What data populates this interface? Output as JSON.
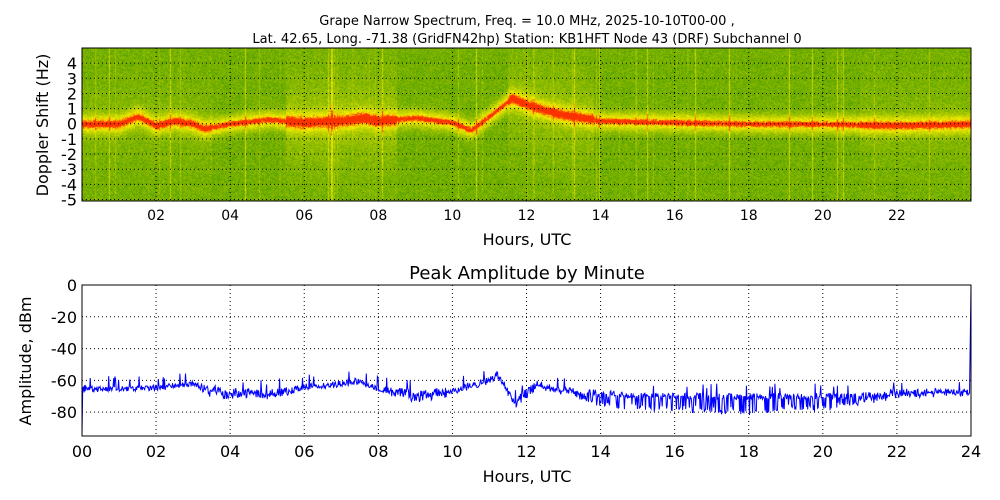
{
  "chart_data": [
    {
      "type": "heatmap",
      "title_line1": "Grape Narrow Spectrum, Freq. = 10.0 MHz, 2025-10-10T00-00 ,",
      "title_line2": "Lat.  42.65, Long. -71.38 (GridFN42hp) Station: KB1HFT Node 43 (DRF) Subchannel 0",
      "xlabel": "Hours, UTC",
      "ylabel": "Doppler Shift (Hz)",
      "xlim": [
        0,
        24
      ],
      "ylim": [
        -5.1,
        5
      ],
      "xticks": [
        2,
        4,
        6,
        8,
        10,
        12,
        14,
        16,
        18,
        20,
        22
      ],
      "xtick_labels": [
        "02",
        "04",
        "06",
        "08",
        "10",
        "12",
        "14",
        "16",
        "18",
        "20",
        "22"
      ],
      "yticks": [
        4,
        3,
        2,
        1,
        0,
        -1,
        -2,
        -3,
        -4,
        -5
      ],
      "ytick_labels": [
        "4",
        "3",
        "2",
        "1",
        "0",
        "-1",
        "-2",
        "-3",
        "-4",
        "-5"
      ],
      "grid": true,
      "colors": {
        "low": "#3f9a00",
        "mid": "#e8f000",
        "high": "#ff2a00"
      },
      "doppler_trace": {
        "hours": [
          0,
          1,
          1.5,
          2,
          2.5,
          3,
          3.3,
          4,
          5,
          6,
          7,
          7.6,
          8,
          9,
          10,
          10.5,
          11,
          11.6,
          12,
          12.5,
          13,
          13.8,
          14,
          16,
          18,
          20,
          22,
          24
        ],
        "hz": [
          0,
          0,
          0.5,
          -0.1,
          0.2,
          0,
          -0.3,
          0,
          0.3,
          0.1,
          0.2,
          0.4,
          0.2,
          0.4,
          0.1,
          -0.4,
          0.5,
          1.7,
          1.3,
          0.9,
          0.6,
          0.3,
          0.2,
          0.1,
          0,
          0,
          -0.1,
          0
        ]
      }
    },
    {
      "type": "line",
      "title": "Peak Amplitude by Minute",
      "xlabel": "Hours, UTC",
      "ylabel": "Amplitude, dBm",
      "xlim": [
        0,
        24
      ],
      "ylim": [
        -95,
        0
      ],
      "xticks": [
        0,
        2,
        4,
        6,
        8,
        10,
        12,
        14,
        16,
        18,
        20,
        22,
        24
      ],
      "xtick_labels": [
        "00",
        "02",
        "04",
        "06",
        "08",
        "10",
        "12",
        "14",
        "16",
        "18",
        "20",
        "22",
        "24"
      ],
      "yticks": [
        0,
        -20,
        -40,
        -60,
        -80
      ],
      "ytick_labels": [
        "0",
        "-20",
        "-40",
        "-60",
        "-80"
      ],
      "grid": true,
      "color": "#0000ff",
      "series": {
        "hours": [
          0,
          1,
          2,
          3,
          3.5,
          5,
          6,
          7,
          7.5,
          8,
          9,
          10,
          11,
          11.2,
          11.7,
          12.3,
          13,
          14,
          15,
          16.5,
          18,
          20,
          21,
          22,
          23.9
        ],
        "mean": [
          -65,
          -65,
          -65,
          -62,
          -65,
          -68,
          -64,
          -62,
          -60,
          -65,
          -68,
          -66,
          -60,
          -56,
          -72,
          -62,
          -66,
          -68,
          -70,
          -70,
          -70,
          -70,
          -70,
          -67,
          -67
        ],
        "low": [
          -68,
          -67,
          -67,
          -64,
          -72,
          -73,
          -67,
          -65,
          -63,
          -68,
          -75,
          -70,
          -63,
          -58,
          -78,
          -66,
          -70,
          -78,
          -80,
          -82,
          -82,
          -80,
          -76,
          -72,
          -70
        ],
        "start_value": -95,
        "end_value": 0
      }
    }
  ]
}
